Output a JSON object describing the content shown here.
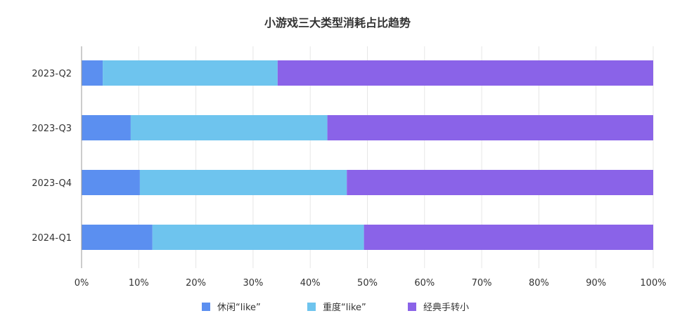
{
  "chart_data": {
    "type": "bar",
    "orientation": "horizontal",
    "stacked": true,
    "title": "小游戏三大类型消耗占比趋势",
    "categories": [
      "2023-Q2",
      "2023-Q3",
      "2023-Q4",
      "2024-Q1"
    ],
    "series": [
      {
        "name": "休闲“like”",
        "color": "#5b8ff0",
        "values": [
          3.7,
          8.6,
          10.2,
          12.4
        ]
      },
      {
        "name": "重度“like”",
        "color": "#6ec4ee",
        "values": [
          30.6,
          34.4,
          36.2,
          37.0
        ]
      },
      {
        "name": "经典手转小",
        "color": "#8a63e8",
        "values": [
          65.7,
          57.0,
          53.6,
          50.6
        ]
      }
    ],
    "xlim": [
      0,
      100
    ],
    "xticks": [
      "0%",
      "10%",
      "20%",
      "30%",
      "40%",
      "50%",
      "60%",
      "70%",
      "80%",
      "90%",
      "100%"
    ],
    "grid": "vertical",
    "legend": "bottom"
  }
}
